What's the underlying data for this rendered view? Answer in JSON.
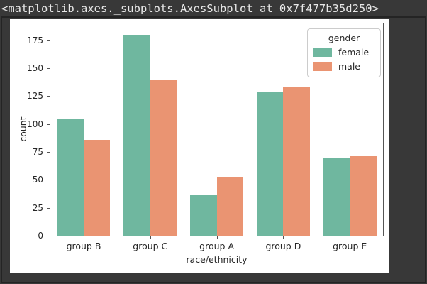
{
  "header": {
    "repr_text": "<matplotlib.axes._subplots.AxesSubplot at 0x7f477b35d250>"
  },
  "chart_data": {
    "type": "bar",
    "title": "",
    "categories": [
      "group B",
      "group C",
      "group A",
      "group D",
      "group E"
    ],
    "series": [
      {
        "name": "female",
        "color": "#6fb79f",
        "values": [
          104,
          180,
          36,
          129,
          69
        ]
      },
      {
        "name": "male",
        "color": "#ea9472",
        "values": [
          86,
          139,
          53,
          133,
          71
        ]
      }
    ],
    "xlabel": "race/ethnicity",
    "ylabel": "count",
    "ylim": [
      0,
      190
    ],
    "yticks": [
      0,
      25,
      50,
      75,
      100,
      125,
      150,
      175
    ],
    "grid": false,
    "legend": {
      "title": "gender",
      "position": "upper right"
    },
    "bar_group_width": 0.8
  },
  "colors": {
    "background": "#383838",
    "figure_background": "#ffffff",
    "spine": "#555555",
    "tick_text": "#262626",
    "repr_text": "#e8e8e8",
    "legend_border": "#cccccc"
  }
}
